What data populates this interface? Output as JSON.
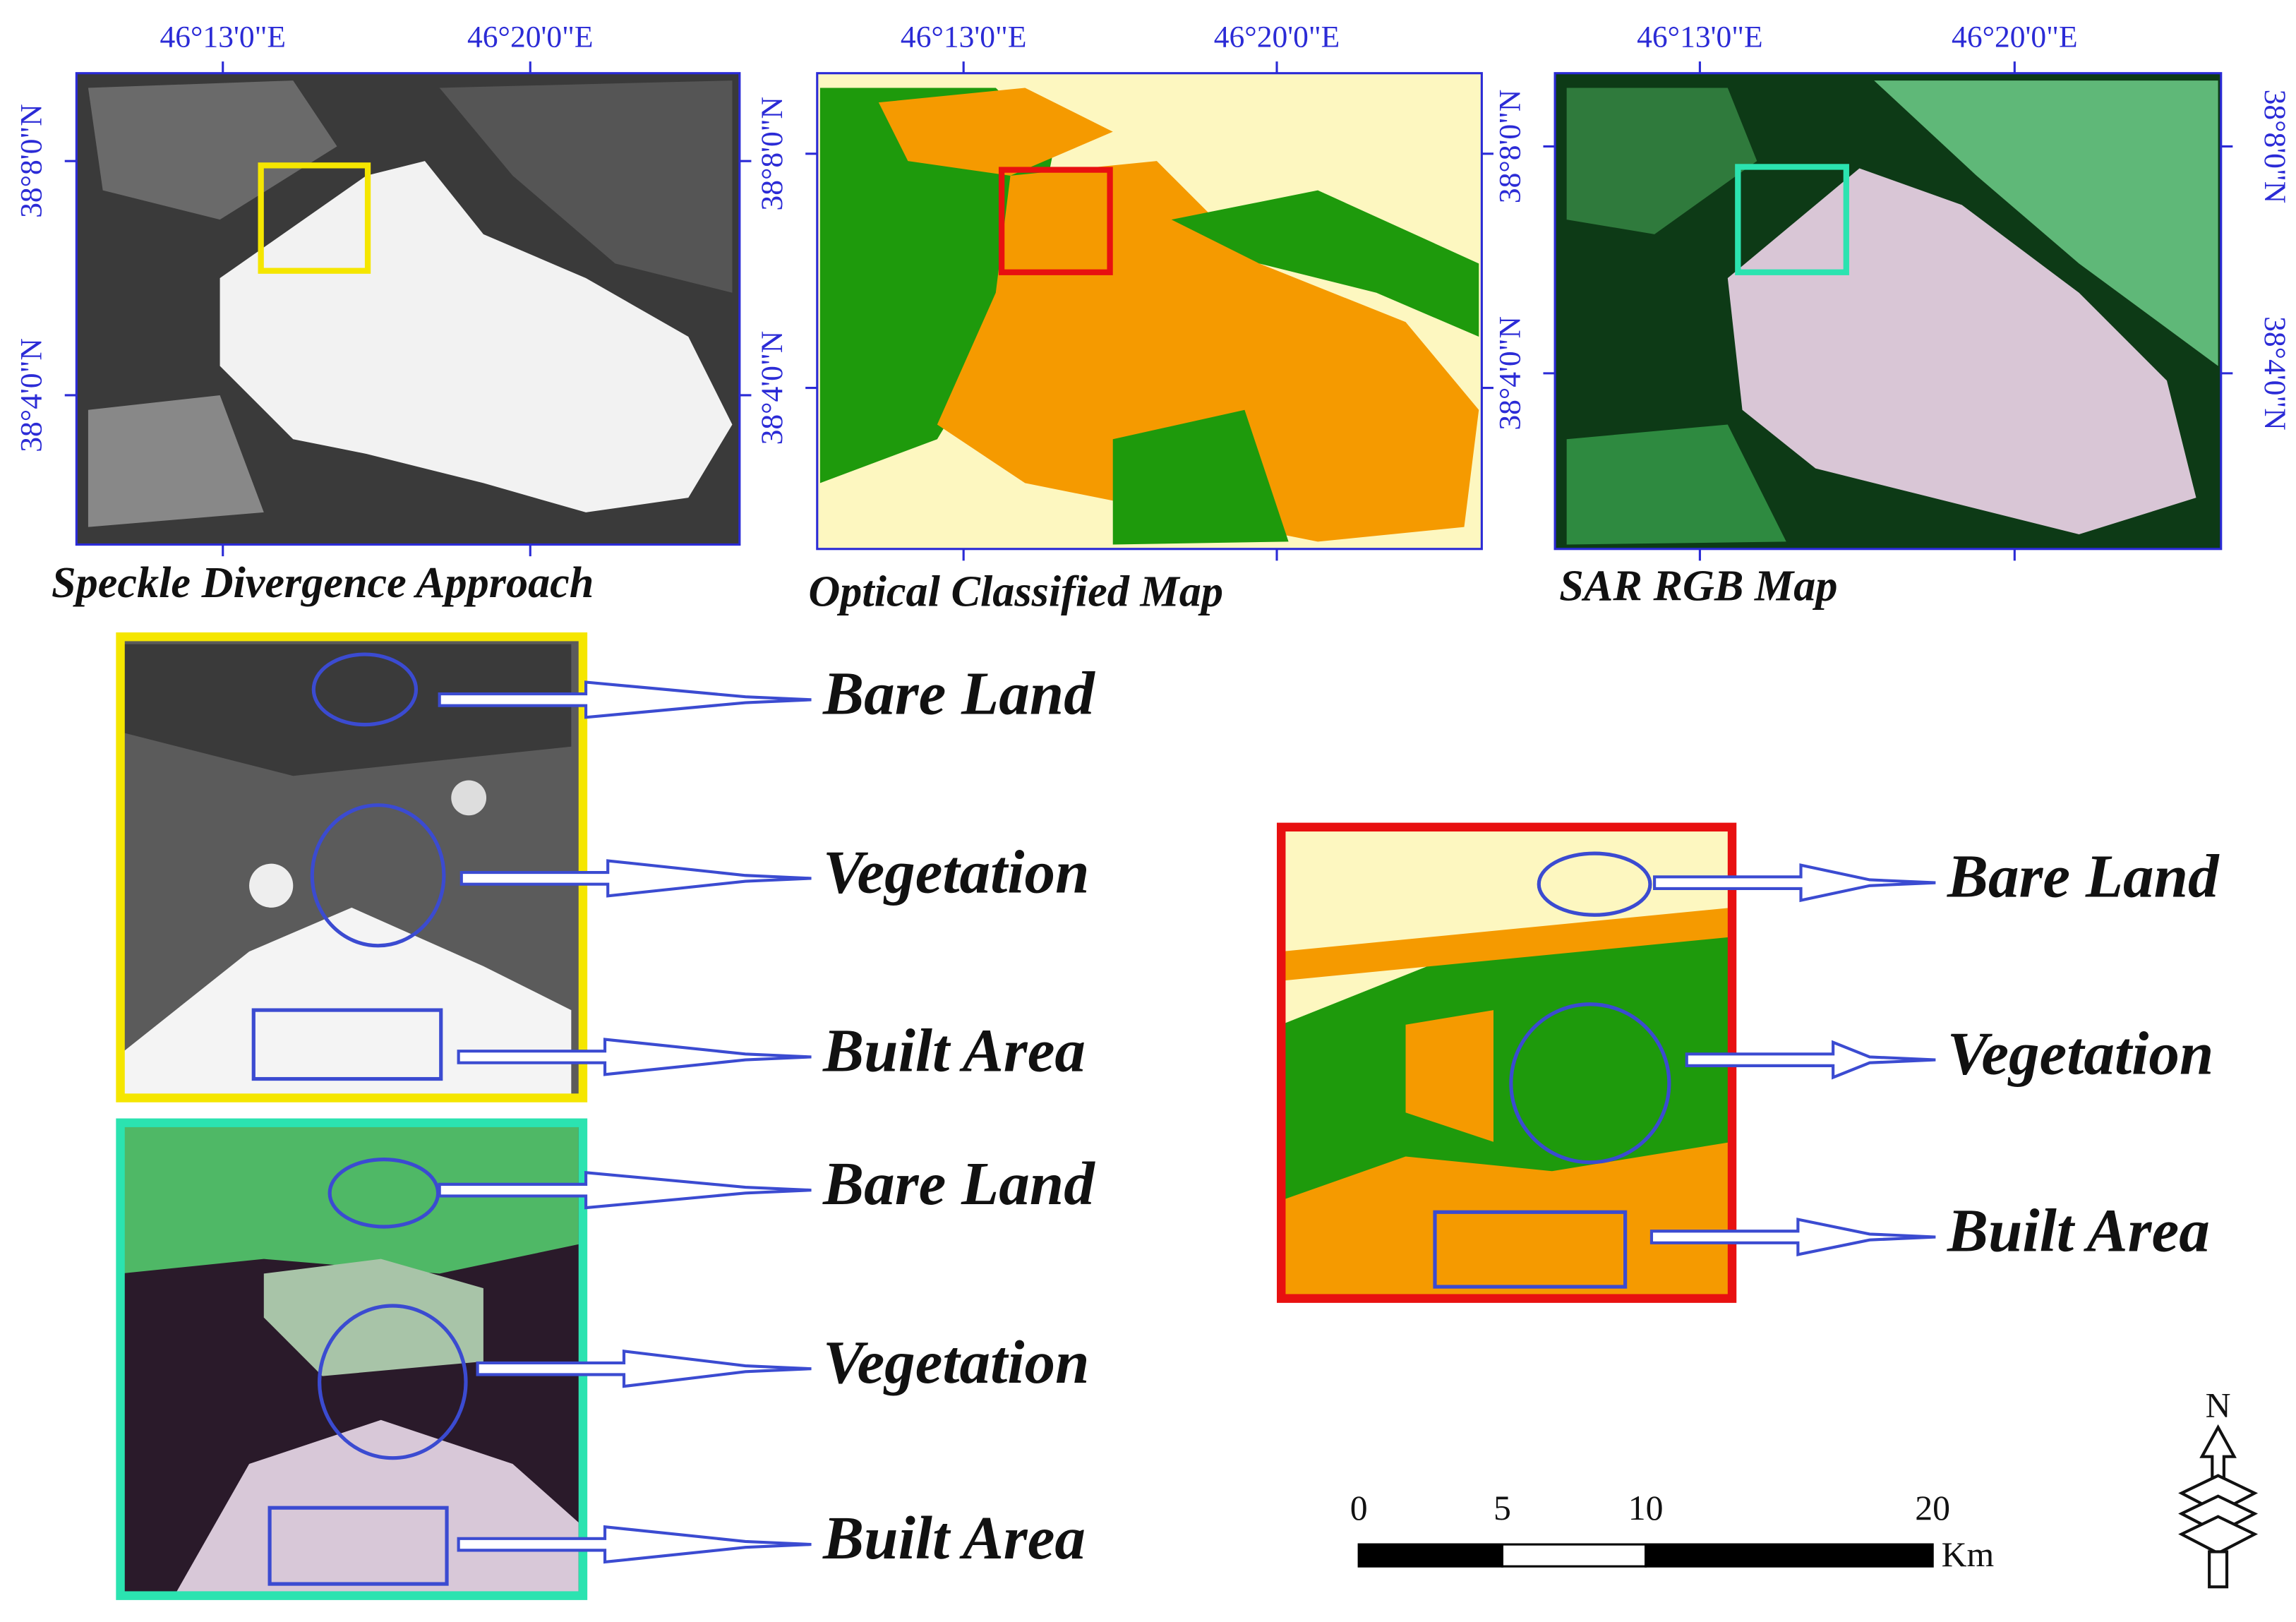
{
  "maps": [
    {
      "title": "Speckle Divergence Approach",
      "lon_labels": [
        "46°13'0\"E",
        "46°20'0\"E"
      ],
      "lat_labels": [
        "38°8'0\"N",
        "38°4'0\"N"
      ]
    },
    {
      "title": "Optical Classified Map",
      "lon_labels": [
        "46°13'0\"E",
        "46°20'0\"E"
      ],
      "lat_labels": [
        "38°8'0\"N",
        "38°4'0\"N"
      ]
    },
    {
      "title": "SAR RGB Map",
      "lon_labels": [
        "46°13'0\"E",
        "46°20'0\"E"
      ],
      "lat_labels": [
        "38°8'0\"N",
        "38°4'0\"N"
      ],
      "lat_labels_right": [
        "38°8'0\"N",
        "38°4'0\"N"
      ]
    }
  ],
  "insets": [
    {
      "labels": [
        "Bare Land",
        "Vegetation",
        "Built Area"
      ]
    },
    {
      "labels": [
        "Bare Land",
        "Vegetation",
        "Built Area"
      ]
    },
    {
      "labels": [
        "Bare Land",
        "Vegetation",
        "Built Area"
      ]
    }
  ],
  "scale_bar": {
    "ticks": [
      0,
      5,
      10,
      20
    ],
    "unit": "Km"
  },
  "north_arrow": "N"
}
